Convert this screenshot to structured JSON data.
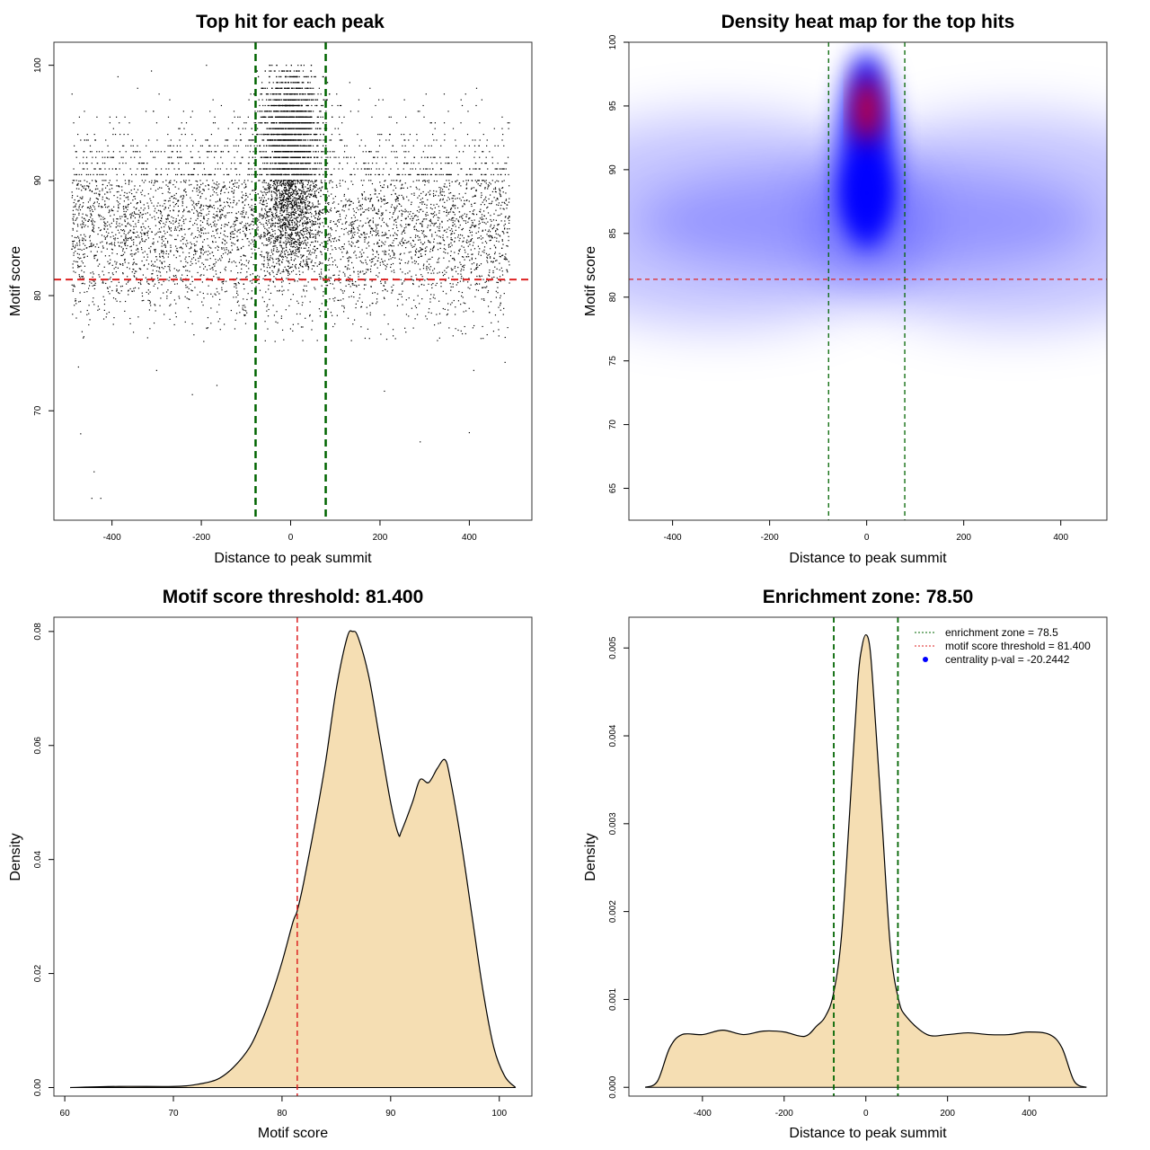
{
  "chart_data": [
    {
      "type": "scatter",
      "title": "Top hit for each peak",
      "xlabel": "Distance to peak summit",
      "ylabel": "Motif score",
      "xlim": [
        -530,
        540
      ],
      "ylim": [
        60.5,
        102
      ],
      "xticks": [
        "-400",
        "-200",
        "0",
        "200",
        "400"
      ],
      "xtick_values": [
        -400,
        -200,
        0,
        200,
        400
      ],
      "yticks": [
        "70",
        "80",
        "90",
        "100"
      ],
      "ytick_values": [
        70,
        80,
        90,
        100
      ],
      "point_color": "#000000",
      "vlines": [
        -78.5,
        78.5
      ],
      "vline_color": "#006400",
      "hline": 81.4,
      "hline_color": "#dd2222",
      "background_band": {
        "x_range": [
          -490,
          490
        ],
        "y_range": [
          76,
          100
        ],
        "density": "high"
      },
      "central_cluster": {
        "x_range": [
          -80,
          80
        ],
        "y_range": [
          82,
          100
        ],
        "density": "very high"
      },
      "sample_outliers": [
        {
          "x": -470,
          "y": 68.0
        },
        {
          "x": -440,
          "y": 64.7
        },
        {
          "x": -445,
          "y": 62.4
        },
        {
          "x": -425,
          "y": 62.4
        },
        {
          "x": -220,
          "y": 71.4
        },
        {
          "x": -165,
          "y": 72.2
        },
        {
          "x": -80,
          "y": 62.2
        },
        {
          "x": 210,
          "y": 71.7
        },
        {
          "x": 290,
          "y": 67.3
        },
        {
          "x": 400,
          "y": 68.1
        },
        {
          "x": -300,
          "y": 73.5
        },
        {
          "x": 410,
          "y": 73.5
        },
        {
          "x": -475,
          "y": 73.8
        },
        {
          "x": 480,
          "y": 74.2
        }
      ],
      "grid": false
    },
    {
      "type": "heatmap",
      "title": "Density heat map for the top hits",
      "xlabel": "Distance to peak summit",
      "ylabel": "Motif score",
      "xlim": [
        -490,
        495
      ],
      "ylim": [
        62.5,
        100
      ],
      "xticks": [
        "-400",
        "-200",
        "0",
        "200",
        "400"
      ],
      "xtick_values": [
        -400,
        -200,
        0,
        200,
        400
      ],
      "yticks": [
        "65",
        "70",
        "75",
        "80",
        "85",
        "90",
        "95",
        "100"
      ],
      "ytick_values": [
        65,
        70,
        75,
        80,
        85,
        90,
        95,
        100
      ],
      "colors": [
        "#ffffff",
        "#0000ff",
        "#ff0000"
      ],
      "hotspots": [
        {
          "x": 0,
          "y": 95,
          "level": "max"
        },
        {
          "x": 0,
          "y": 88,
          "level": "high"
        },
        {
          "x": 0,
          "y": 86,
          "level": "background band"
        }
      ],
      "vlines": [
        -78.5,
        78.5
      ],
      "vline_color": "#006400",
      "hline": 81.4,
      "hline_color": "#dd2222",
      "grid": false
    },
    {
      "type": "area",
      "title": "Motif score threshold: 81.400",
      "xlabel": "Motif score",
      "ylabel": "Density",
      "xlim": [
        59,
        103
      ],
      "ylim": [
        -0.0015,
        0.0825
      ],
      "xticks": [
        "60",
        "70",
        "80",
        "90",
        "100"
      ],
      "xtick_values": [
        60,
        70,
        80,
        90,
        100
      ],
      "yticks": [
        "0.00",
        "0.02",
        "0.04",
        "0.06",
        "0.08"
      ],
      "ytick_values": [
        0,
        0.02,
        0.04,
        0.06,
        0.08
      ],
      "x": [
        60.5,
        65,
        70,
        72,
        74,
        75.5,
        77,
        78,
        79,
        80,
        81,
        81.4,
        82,
        83,
        84,
        85,
        86,
        86.5,
        87,
        88,
        89,
        90,
        90.7,
        91,
        92,
        92.7,
        93.5,
        94.3,
        95,
        95.5,
        96.5,
        97.5,
        98.5,
        99.5,
        100.5,
        101.5
      ],
      "y": [
        0,
        0.0002,
        0.0002,
        0.0005,
        0.0014,
        0.0035,
        0.007,
        0.011,
        0.016,
        0.022,
        0.029,
        0.031,
        0.036,
        0.046,
        0.057,
        0.07,
        0.079,
        0.08,
        0.079,
        0.072,
        0.061,
        0.05,
        0.0445,
        0.045,
        0.05,
        0.054,
        0.0535,
        0.056,
        0.0575,
        0.054,
        0.043,
        0.03,
        0.017,
        0.007,
        0.002,
        0
      ],
      "fill_color": "#f5deb3",
      "vline": 81.4,
      "vline_color": "#dd2222",
      "grid": false
    },
    {
      "type": "area",
      "title": "Enrichment zone: 78.50",
      "xlabel": "Distance to peak summit",
      "ylabel": "Density",
      "xlim": [
        -580,
        590
      ],
      "ylim": [
        -0.0001,
        0.00535
      ],
      "xticks": [
        "-400",
        "-200",
        "0",
        "200",
        "400"
      ],
      "xtick_values": [
        -400,
        -200,
        0,
        200,
        400
      ],
      "yticks": [
        "0.000",
        "0.001",
        "0.002",
        "0.003",
        "0.004",
        "0.005"
      ],
      "ytick_values": [
        0,
        0.001,
        0.002,
        0.003,
        0.004,
        0.005
      ],
      "x": [
        -540,
        -510,
        -480,
        -450,
        -400,
        -350,
        -300,
        -250,
        -200,
        -150,
        -120,
        -100,
        -80,
        -60,
        -40,
        -20,
        -10,
        0,
        10,
        20,
        40,
        60,
        80,
        100,
        150,
        200,
        250,
        300,
        350,
        400,
        450,
        480,
        510,
        540
      ],
      "y": [
        0,
        7e-05,
        0.00045,
        0.0006,
        0.0006,
        0.00065,
        0.0006,
        0.00064,
        0.00063,
        0.00058,
        0.0007,
        0.0008,
        0.00105,
        0.0017,
        0.0031,
        0.0046,
        0.005,
        0.00515,
        0.005,
        0.0044,
        0.003,
        0.0016,
        0.001,
        0.0008,
        0.0006,
        0.0006,
        0.00062,
        0.0006,
        0.0006,
        0.00063,
        0.0006,
        0.00045,
        7e-05,
        0
      ],
      "fill_color": "#f5deb3",
      "vlines": [
        -78.5,
        78.5
      ],
      "vline_color": "#006400",
      "legend_position": "top-right",
      "legend": [
        {
          "label": "enrichment zone = 78.5",
          "style": "dotted-line",
          "color": "#006400"
        },
        {
          "label": "motif score threshold = 81.400",
          "style": "dotted-line",
          "color": "#dd2222"
        },
        {
          "label": "centrality p-val = -20.2442",
          "style": "point",
          "color": "#0000ff"
        }
      ],
      "grid": false
    }
  ]
}
